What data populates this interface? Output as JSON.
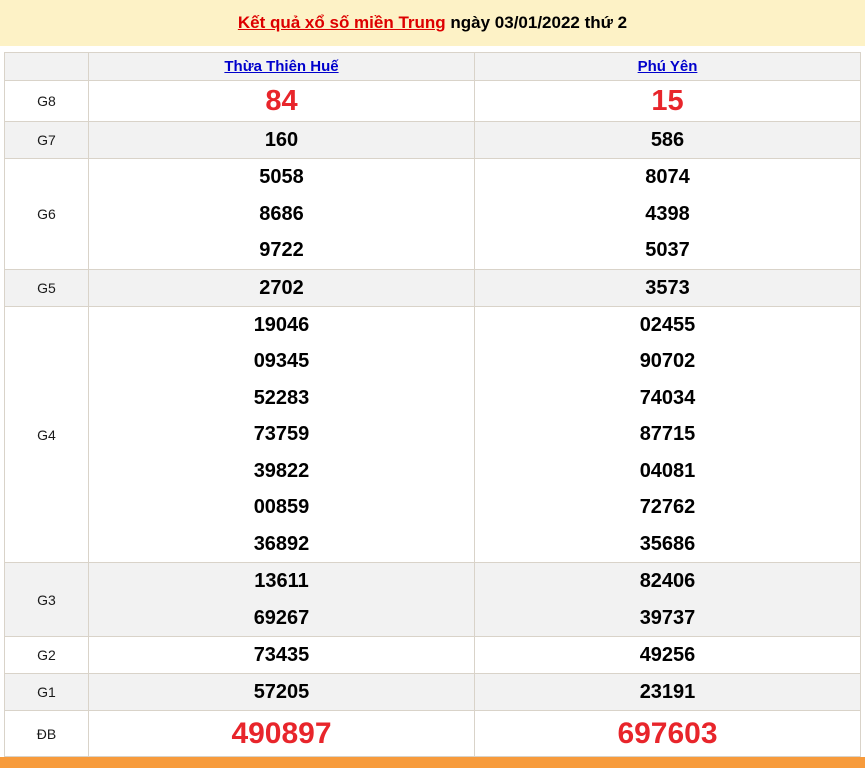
{
  "title": {
    "link_text": "Kết quả xổ số miền Trung",
    "suffix_text": " ngày 03/01/2022 thứ 2"
  },
  "table": {
    "headers": {
      "label": "",
      "province1": "Thừa Thiên Huế",
      "province2": "Phú Yên"
    },
    "g8": {
      "label": "G8",
      "p1": [
        "84"
      ],
      "p2": [
        "15"
      ]
    },
    "g7": {
      "label": "G7",
      "p1": [
        "160"
      ],
      "p2": [
        "586"
      ]
    },
    "g6": {
      "label": "G6",
      "p1": [
        "5058",
        "8686",
        "9722"
      ],
      "p2": [
        "8074",
        "4398",
        "5037"
      ]
    },
    "g5": {
      "label": "G5",
      "p1": [
        "2702"
      ],
      "p2": [
        "3573"
      ]
    },
    "g4": {
      "label": "G4",
      "p1": [
        "19046",
        "09345",
        "52283",
        "73759",
        "39822",
        "00859",
        "36892"
      ],
      "p2": [
        "02455",
        "90702",
        "74034",
        "87715",
        "04081",
        "72762",
        "35686"
      ]
    },
    "g3": {
      "label": "G3",
      "p1": [
        "13611",
        "69267"
      ],
      "p2": [
        "82406",
        "39737"
      ]
    },
    "g2": {
      "label": "G2",
      "p1": [
        "73435"
      ],
      "p2": [
        "49256"
      ]
    },
    "g1": {
      "label": "G1",
      "p1": [
        "57205"
      ],
      "p2": [
        "23191"
      ]
    },
    "db": {
      "label": "ĐB",
      "p1": [
        "490897"
      ],
      "p2": [
        "697603"
      ]
    }
  },
  "colors": {
    "title_red": "#dd0000",
    "number_red": "#e8252b",
    "link_blue": "#0000cc",
    "header_yellow": "#fdf2c6",
    "band_gray": "#f2f2f2",
    "border_tan": "#d9d3c9",
    "bottom_bar_orange": "#f79b3c"
  }
}
